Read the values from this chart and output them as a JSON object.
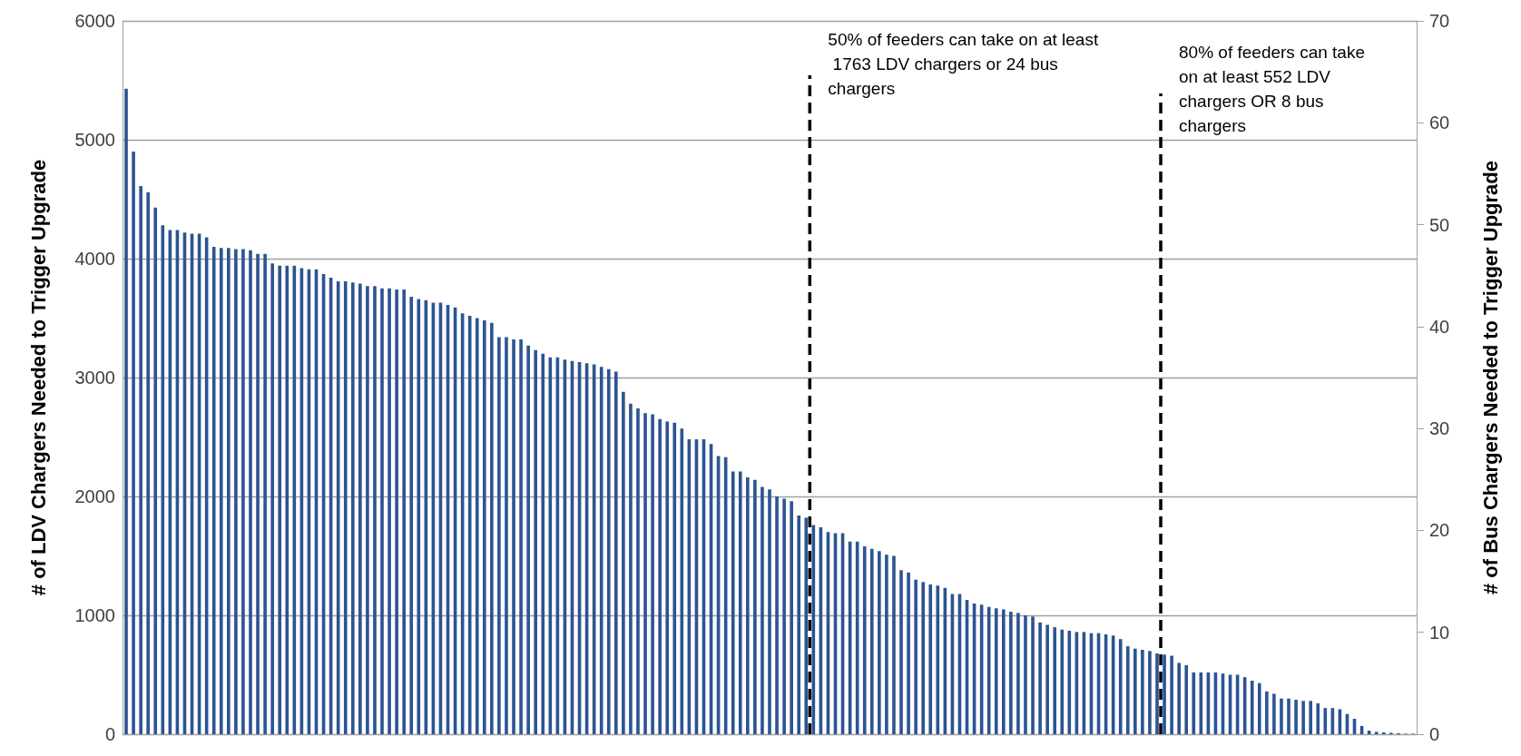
{
  "chart_data": {
    "type": "bar",
    "ylabel": "# of LDV Chargers Needed to Trigger Upgrade",
    "y2label": "# of Bus Chargers Needed to Trigger Upgrade",
    "categories": [
      null,
      null,
      null,
      null,
      null,
      null,
      null,
      null,
      null,
      null,
      null,
      null,
      null,
      null,
      null,
      null,
      null,
      null,
      null,
      null,
      null,
      null,
      null,
      null,
      null,
      null,
      null,
      null,
      null,
      null,
      null,
      null,
      null,
      null,
      null,
      null,
      null,
      null,
      null,
      null,
      null,
      null,
      null,
      null,
      null,
      null,
      null,
      null,
      null,
      null,
      null,
      null,
      null,
      null,
      null,
      null,
      null,
      null,
      null,
      null,
      null,
      null,
      null,
      null,
      null,
      null,
      null,
      null,
      null,
      null,
      null,
      null,
      null,
      null,
      null,
      null,
      null,
      null,
      null,
      null,
      null,
      null,
      null,
      null,
      null,
      null,
      null,
      null,
      null,
      null,
      null,
      null,
      null,
      null,
      null,
      null,
      null,
      null,
      null,
      null,
      null,
      null,
      null,
      null,
      null,
      null,
      null,
      null,
      null,
      null,
      null,
      null,
      null,
      null,
      null,
      null,
      null,
      null,
      null,
      null,
      null,
      null,
      null,
      null,
      null,
      null,
      null,
      null,
      null,
      null,
      null,
      null,
      null,
      null,
      null,
      null,
      null,
      null,
      null,
      null,
      null,
      null,
      null,
      null,
      null,
      null,
      null,
      null,
      null,
      null,
      null,
      null,
      null,
      null,
      null,
      null,
      null,
      null,
      null,
      null,
      null,
      null,
      null,
      null,
      null,
      null,
      null,
      null,
      null,
      null,
      null,
      null,
      null,
      null,
      null,
      null,
      null
    ],
    "values": [
      5430,
      4900,
      4610,
      4560,
      4430,
      4280,
      4240,
      4240,
      4220,
      4210,
      4210,
      4180,
      4100,
      4090,
      4090,
      4080,
      4080,
      4070,
      4040,
      4040,
      3960,
      3940,
      3940,
      3940,
      3920,
      3910,
      3910,
      3870,
      3840,
      3810,
      3810,
      3800,
      3790,
      3770,
      3770,
      3750,
      3750,
      3740,
      3740,
      3680,
      3660,
      3650,
      3630,
      3630,
      3610,
      3590,
      3540,
      3520,
      3500,
      3480,
      3460,
      3340,
      3340,
      3320,
      3320,
      3270,
      3230,
      3200,
      3170,
      3170,
      3150,
      3140,
      3130,
      3120,
      3110,
      3090,
      3070,
      3050,
      2880,
      2780,
      2740,
      2700,
      2690,
      2650,
      2630,
      2620,
      2570,
      2480,
      2480,
      2480,
      2440,
      2340,
      2330,
      2210,
      2210,
      2160,
      2140,
      2080,
      2060,
      2000,
      1980,
      1960,
      1840,
      1820,
      1760,
      1740,
      1700,
      1690,
      1690,
      1620,
      1620,
      1580,
      1560,
      1540,
      1510,
      1500,
      1380,
      1360,
      1300,
      1280,
      1260,
      1250,
      1230,
      1180,
      1180,
      1130,
      1100,
      1090,
      1070,
      1060,
      1050,
      1030,
      1020,
      1000,
      990,
      940,
      920,
      900,
      880,
      870,
      860,
      860,
      850,
      850,
      840,
      830,
      800,
      740,
      720,
      710,
      700,
      680,
      670,
      660,
      600,
      580,
      520,
      520,
      520,
      520,
      510,
      500,
      500,
      480,
      450,
      430,
      360,
      340,
      300,
      300,
      290,
      280,
      280,
      260,
      220,
      220,
      210,
      170,
      130,
      70,
      30,
      20,
      16,
      12,
      8,
      4,
      4
    ],
    "color": "#2c5491",
    "ylim": [
      0,
      6000
    ],
    "yticks": [
      0,
      1000,
      2000,
      3000,
      4000,
      5000,
      6000
    ],
    "y2lim": [
      0,
      70
    ],
    "y2ticks": [
      0,
      10,
      20,
      30,
      40,
      50,
      60,
      70
    ],
    "grid": "y",
    "annotations": [
      "50% of feeders can take on at least 1763 LDV chargers or 24 bus chargers",
      "80% of feeders can take on at least 552 LDV chargers OR 8 bus chargers"
    ]
  }
}
